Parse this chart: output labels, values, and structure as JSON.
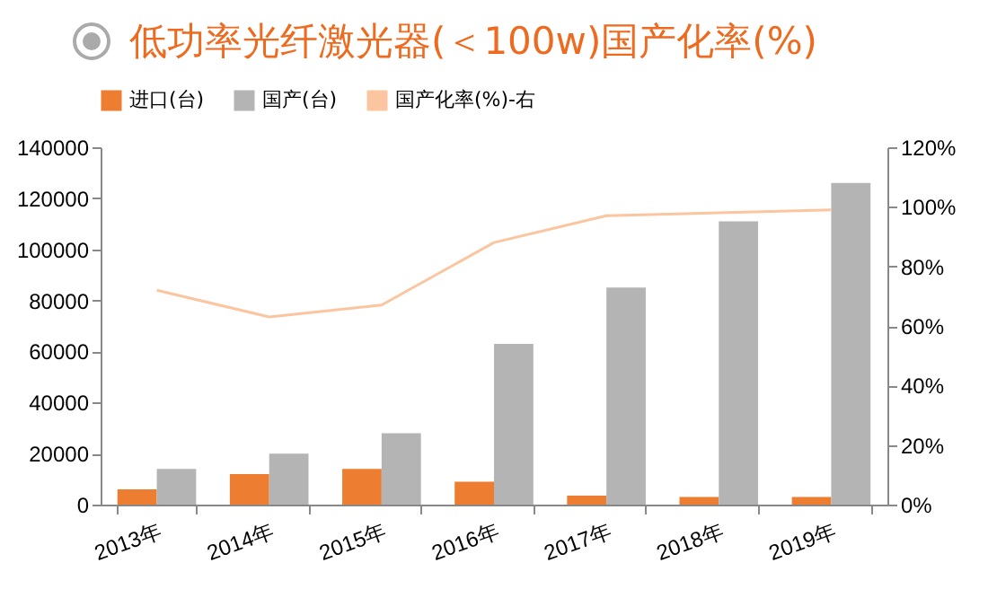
{
  "chart_data": {
    "type": "bar",
    "title": "低功率光纤激光器(＜100w)国产化率(%)",
    "categories": [
      "2013年",
      "2014年",
      "2015年",
      "2016年",
      "2017年",
      "2018年",
      "2019年"
    ],
    "series": [
      {
        "name": "进口(台)",
        "color": "#ed7d31",
        "values": [
          6000,
          12000,
          14000,
          9000,
          3500,
          3000,
          3000
        ]
      },
      {
        "name": "国产(台)",
        "color": "#b4b4b4",
        "values": [
          14000,
          20000,
          28000,
          63000,
          85000,
          111000,
          126000
        ]
      },
      {
        "name": "国产化率(%)-右",
        "type": "line",
        "axis": "y2",
        "color": "#fbc59f",
        "values": [
          72,
          63,
          67,
          88,
          97,
          98,
          99
        ]
      }
    ],
    "ylim": [
      0,
      140000
    ],
    "yticks": [
      0,
      20000,
      40000,
      60000,
      80000,
      100000,
      120000,
      140000
    ],
    "y2lim": [
      0,
      120
    ],
    "y2ticks": [
      {
        "value": 0,
        "label": "0%"
      },
      {
        "value": 20,
        "label": "20%"
      },
      {
        "value": 40,
        "label": "40%"
      },
      {
        "value": 60,
        "label": "60%"
      },
      {
        "value": 80,
        "label": "80%"
      },
      {
        "value": 100,
        "label": "100%"
      },
      {
        "value": 120,
        "label": "120%"
      }
    ],
    "grid": false,
    "legend": "top",
    "line_style": "solid"
  }
}
